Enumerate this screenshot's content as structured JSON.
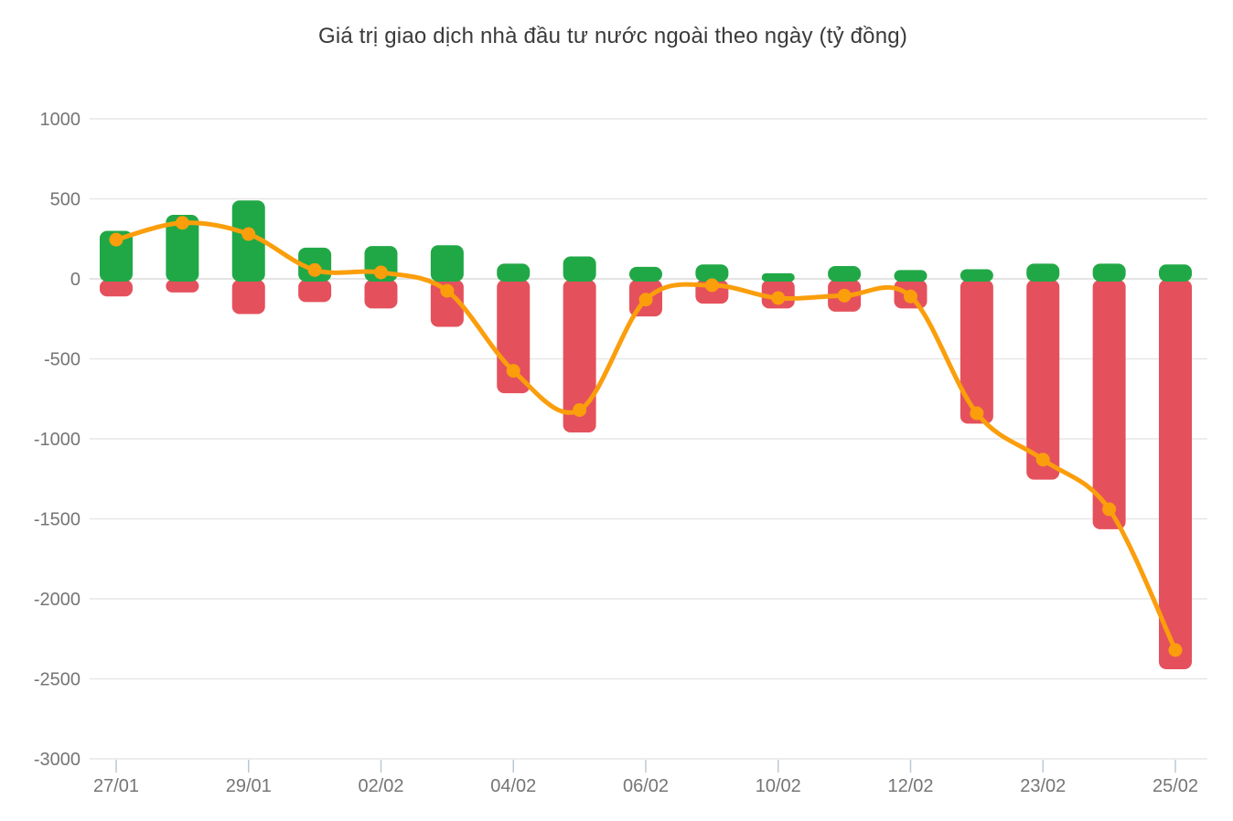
{
  "title": "Giá trị giao dịch nhà đầu tư nước ngoài theo ngày (tỷ đồng)",
  "colors": {
    "buy_bar": "#21A846",
    "sell_bar": "#E4515C",
    "net_line": "#FB9E0C",
    "grid_line": "#E7E7E7",
    "zero_line": "#DBDBDB",
    "axis_tick": "#BCC8D4",
    "axis_text": "#757575",
    "title_text": "#3A3A3A",
    "background": "#FFFFFF"
  },
  "chart_data": {
    "type": "bar",
    "subtype": "combo-bar-line",
    "title": "Giá trị giao dịch nhà đầu tư nước ngoài theo ngày (tỷ đồng)",
    "categories": [
      "27/01",
      "",
      "29/01",
      "",
      "02/02",
      "",
      "04/02",
      "",
      "06/02",
      "",
      "10/02",
      "",
      "12/02",
      "",
      "23/02",
      "",
      "25/02"
    ],
    "series": [
      {
        "name": "buy-bars",
        "kind": "bar",
        "color": "#21A846",
        "values": [
          300,
          400,
          490,
          195,
          205,
          210,
          95,
          140,
          75,
          90,
          35,
          80,
          55,
          60,
          95,
          95,
          90
        ]
      },
      {
        "name": "sell-bars",
        "kind": "bar",
        "color": "#E4515C",
        "values": [
          -110,
          -85,
          -220,
          -145,
          -185,
          -300,
          -715,
          -960,
          -235,
          -155,
          -185,
          -205,
          -185,
          -905,
          -1255,
          -1565,
          -2440
        ]
      },
      {
        "name": "net-line",
        "kind": "line",
        "color": "#FB9E0C",
        "values": [
          245,
          350,
          280,
          55,
          40,
          -75,
          -575,
          -820,
          -130,
          -40,
          -120,
          -105,
          -110,
          -840,
          -1130,
          -1440,
          -2320
        ]
      }
    ],
    "xlabel": "",
    "ylabel": "",
    "ylim": [
      -3000,
      1000
    ],
    "y_ticks": [
      1000,
      500,
      0,
      -500,
      -1000,
      -1500,
      -2000,
      -2500,
      -3000
    ],
    "grid": true,
    "legend": false
  }
}
